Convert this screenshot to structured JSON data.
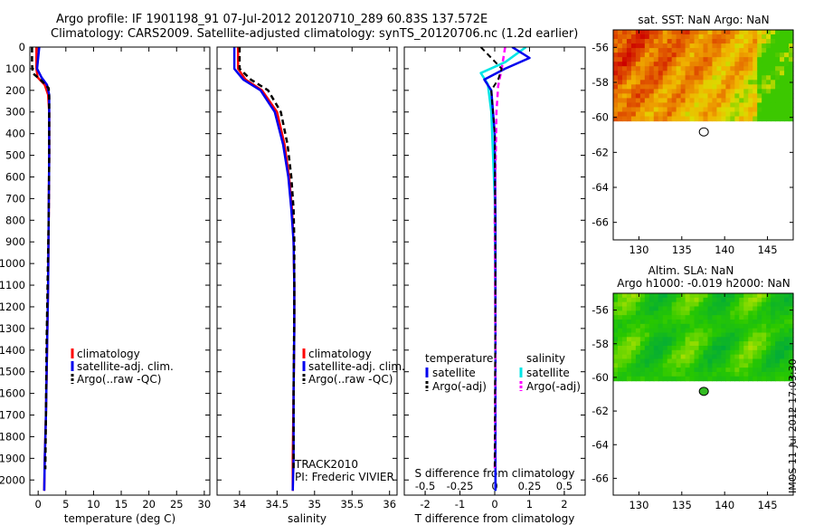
{
  "title_line1": "Argo profile: IF 1901198_91 07-Jul-2012 20120710_289 60.83S 137.572E",
  "title_line2": "Climatology: CARS2009. Satellite-adjusted climatology: synTS_20120706.nc (1.2d earlier)",
  "stamp": "IMOS 11-Jul-2012 17:03:30",
  "colors": {
    "climatology": "#ff0000",
    "satellite": "#0000ee",
    "argo": "#000000",
    "sal_satellite": "#00e5e5",
    "sal_argo": "#ff00ff"
  },
  "chart_data": [
    {
      "type": "line",
      "panel": "temperature",
      "xlabel": "temperature (deg C)",
      "ylabel": "",
      "xlim": [
        -1.5,
        31
      ],
      "ylim": [
        2070,
        0
      ],
      "xticks": [
        0,
        5,
        10,
        15,
        20,
        25,
        30
      ],
      "yticks": [
        0,
        100,
        200,
        300,
        400,
        500,
        600,
        700,
        800,
        900,
        1000,
        1100,
        1200,
        1300,
        1400,
        1500,
        1600,
        1700,
        1800,
        1900,
        2000
      ],
      "legend": [
        "climatology",
        "satellite-adj. clim.",
        "Argo(..raw -QC)"
      ],
      "series": [
        {
          "name": "climatology",
          "x": [
            -0.3,
            -0.3,
            -0.1,
            1.2,
            1.8,
            2.0,
            2.0,
            1.9,
            1.8,
            1.6,
            1.4,
            1.2,
            1.1
          ],
          "y": [
            0,
            100,
            140,
            175,
            220,
            300,
            500,
            800,
            1100,
            1400,
            1700,
            1900,
            2050
          ]
        },
        {
          "name": "satellite-adj. clim.",
          "x": [
            0.2,
            0.0,
            -0.2,
            0.6,
            1.6,
            2.0,
            2.0,
            1.9,
            1.8,
            1.6,
            1.4,
            1.2,
            1.1
          ],
          "y": [
            0,
            50,
            100,
            140,
            175,
            220,
            500,
            800,
            1100,
            1400,
            1700,
            1900,
            2050
          ]
        },
        {
          "name": "Argo(..raw -QC)",
          "x": [
            -1.1,
            -1.1,
            -1.0,
            0.8,
            1.9,
            2.0,
            2.0,
            1.9,
            1.7,
            1.5,
            1.4,
            1.3
          ],
          "y": [
            0,
            80,
            120,
            160,
            190,
            230,
            500,
            800,
            1100,
            1400,
            1700,
            1950
          ]
        }
      ]
    },
    {
      "type": "line",
      "panel": "salinity",
      "xlabel": "salinity",
      "xlim": [
        33.7,
        36.1
      ],
      "ylim": [
        2070,
        0
      ],
      "xticks": [
        34,
        34.5,
        35,
        35.5,
        36
      ],
      "legend": [
        "climatology",
        "satellite-adj. clim.",
        "Argo(..raw -QC)"
      ],
      "annotation": [
        "TRACK2010",
        "PI: Frederic VIVIER"
      ],
      "series": [
        {
          "name": "climatology",
          "x": [
            33.98,
            33.98,
            34.08,
            34.3,
            34.5,
            34.6,
            34.66,
            34.7,
            34.72,
            34.73,
            34.73,
            34.72,
            34.71,
            34.71
          ],
          "y": [
            0,
            100,
            150,
            200,
            300,
            450,
            600,
            750,
            900,
            1100,
            1300,
            1600,
            1900,
            2050
          ]
        },
        {
          "name": "satellite-adj. clim.",
          "x": [
            33.93,
            33.93,
            34.05,
            34.28,
            34.47,
            34.58,
            34.65,
            34.69,
            34.72,
            34.73,
            34.73,
            34.72,
            34.72,
            34.71
          ],
          "y": [
            0,
            100,
            150,
            200,
            300,
            450,
            600,
            750,
            900,
            1100,
            1300,
            1600,
            1900,
            2050
          ]
        },
        {
          "name": "Argo(..raw -QC)",
          "x": [
            34.0,
            34.0,
            34.15,
            34.38,
            34.55,
            34.64,
            34.69,
            34.72,
            34.73,
            34.73,
            34.72,
            34.72
          ],
          "y": [
            0,
            100,
            150,
            200,
            300,
            450,
            600,
            750,
            900,
            1200,
            1600,
            1950
          ]
        }
      ]
    },
    {
      "type": "line",
      "panel": "differences",
      "xlabel": "T difference from climatology",
      "xlabel_top": "S difference from climatology",
      "xlim": [
        -2.6,
        2.6
      ],
      "ylim": [
        2070,
        0
      ],
      "xticks": [
        -2,
        -1,
        0,
        1,
        2
      ],
      "xticks_top": [
        -0.5,
        -0.25,
        0,
        0.25,
        0.5
      ],
      "legend_titles": [
        "temperature",
        "salinity"
      ],
      "legend": [
        "satellite",
        "Argo(-adj)",
        "satellite",
        "Argo(-adj)"
      ],
      "series": [
        {
          "name": "temperature satellite",
          "x": [
            0.5,
            1.0,
            0.3,
            -0.3,
            -0.1,
            0.0,
            0.02,
            0.02,
            0.02
          ],
          "y": [
            0,
            50,
            100,
            150,
            200,
            400,
            800,
            1400,
            2050
          ]
        },
        {
          "name": "temperature Argo(-adj)",
          "x": [
            -0.4,
            0.2,
            0.1,
            -0.1,
            0.0,
            0.02,
            0.0
          ],
          "y": [
            0,
            100,
            150,
            200,
            400,
            1000,
            1950
          ]
        },
        {
          "name": "salinity satellite",
          "x": [
            0.9,
            0.3,
            -0.4,
            -0.2,
            -0.1,
            0.0,
            0.02,
            0.02
          ],
          "y": [
            0,
            70,
            120,
            170,
            300,
            700,
            1300,
            2050
          ]
        },
        {
          "name": "salinity Argo(-adj)",
          "x": [
            0.3,
            0.2,
            0.1,
            0.05,
            0.0,
            0.02,
            0.0
          ],
          "y": [
            0,
            100,
            180,
            300,
            800,
            1400,
            1950
          ]
        }
      ]
    },
    {
      "type": "heatmap",
      "panel": "sst_map",
      "title": "sat. SST: NaN Argo: NaN",
      "xlim": [
        127,
        148
      ],
      "ylim": [
        -67,
        -55
      ],
      "xticks": [
        130,
        135,
        140,
        145
      ],
      "yticks": [
        -56,
        -58,
        -60,
        -62,
        -64,
        -66
      ],
      "data_lat_range": [
        -60.2,
        -55
      ],
      "argo_position": [
        137.572,
        -60.83
      ]
    },
    {
      "type": "heatmap",
      "panel": "sla_map",
      "title": "Altim. SLA: NaN",
      "subtitle": "Argo h1000: -0.019 h2000: NaN",
      "xlim": [
        127,
        148
      ],
      "ylim": [
        -67,
        -55
      ],
      "xticks": [
        130,
        135,
        140,
        145
      ],
      "yticks": [
        -56,
        -58,
        -60,
        -62,
        -64,
        -66
      ],
      "data_lat_range": [
        -60.2,
        -55
      ],
      "argo_position": [
        137.572,
        -60.83
      ]
    }
  ]
}
